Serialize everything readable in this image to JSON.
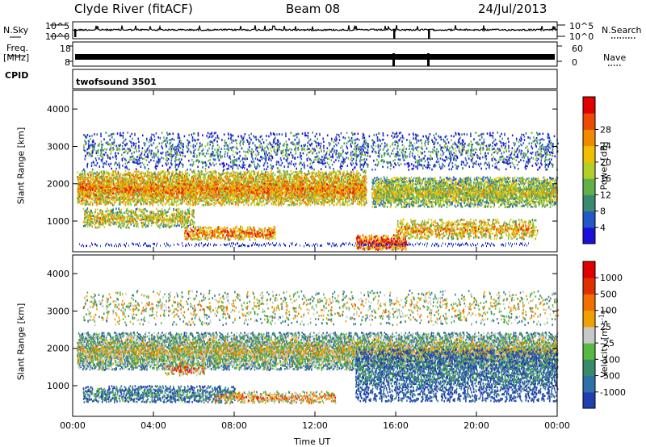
{
  "header": {
    "station": "Clyde River (fitACF)",
    "beam": "Beam 08",
    "date": "24/Jul/2013"
  },
  "strips": {
    "nsky_label": "N.Sky",
    "nsearch_label": "N.Search",
    "noise_top_tick": "10^5",
    "noise_bottom_tick": "10^0",
    "freq_label": "Freq.",
    "freq_unit": "[MHz]",
    "freq_ticks": [
      "18",
      "8"
    ],
    "nave_label": "Nave",
    "nave_ticks": [
      "60",
      "0"
    ],
    "cpid_label": "CPID",
    "cpid_value": "twofsound 3501"
  },
  "chart_data": [
    {
      "type": "heatmap",
      "panel": "power",
      "ylabel": "Slant Range [km]",
      "xlabel": "",
      "y_ticks": [
        "1000",
        "2000",
        "3000",
        "4000"
      ],
      "ylim": [
        180,
        4500
      ],
      "colorbar_label": "Power [dB]",
      "colorbar_ticks": [
        "4",
        "8",
        "12",
        "16",
        "20",
        "24",
        "28"
      ],
      "colorbar_colors": [
        "#1c10d8",
        "#2458c8",
        "#3a8a72",
        "#62b04a",
        "#b4d028",
        "#f0c000",
        "#f28a00",
        "#ec4a00",
        "#e00000"
      ],
      "scatter_bands": [
        {
          "t0": 0.2,
          "t1": 14.5,
          "r_center": 1900,
          "r_halfwidth": 450,
          "level": 0.72,
          "density": 0.9
        },
        {
          "t0": 14.8,
          "t1": 24.0,
          "r_center": 1800,
          "r_halfwidth": 400,
          "level": 0.55,
          "density": 0.85
        },
        {
          "t0": 0.5,
          "t1": 6.0,
          "r_center": 1100,
          "r_halfwidth": 250,
          "level": 0.6,
          "density": 0.6
        },
        {
          "t0": 5.5,
          "t1": 10.0,
          "r_center": 700,
          "r_halfwidth": 180,
          "level": 0.8,
          "density": 0.6
        },
        {
          "t0": 14.0,
          "t1": 16.5,
          "r_center": 450,
          "r_halfwidth": 200,
          "level": 0.92,
          "density": 0.8
        },
        {
          "t0": 16.0,
          "t1": 23.0,
          "r_center": 800,
          "r_halfwidth": 250,
          "level": 0.7,
          "density": 0.55
        },
        {
          "t0": 0.5,
          "t1": 24.0,
          "r_center": 2900,
          "r_halfwidth": 500,
          "level": 0.3,
          "density": 0.22
        }
      ]
    },
    {
      "type": "heatmap",
      "panel": "velocity",
      "ylabel": "Slant Range [km]",
      "xlabel": "Time UT",
      "x_ticks": [
        "00:00",
        "04:00",
        "08:00",
        "12:00",
        "16:00",
        "20:00",
        "00:00"
      ],
      "xlim": [
        0,
        24
      ],
      "y_ticks": [
        "1000",
        "2000",
        "3000",
        "4000"
      ],
      "ylim": [
        180,
        4500
      ],
      "colorbar_label": "Velocity [m s",
      "colorbar_unit_exp": "-1",
      "colorbar_unit_close": "]",
      "colorbar_ticks": [
        "1000",
        "500",
        "100",
        "25",
        "-25",
        "-100",
        "-500",
        "-1000"
      ],
      "colorbar_colors": [
        "#2040b0",
        "#3070a8",
        "#3a8a6a",
        "#58b840",
        "#c8c8c8",
        "#f0a000",
        "#f07000",
        "#e03000",
        "#e00000"
      ],
      "scatter_bands": [
        {
          "t0": 0.2,
          "t1": 24.0,
          "r_center": 1950,
          "r_halfwidth": 500,
          "level": 0.5,
          "density": 0.85
        },
        {
          "t0": 0.5,
          "t1": 8.0,
          "r_center": 800,
          "r_halfwidth": 220,
          "level": 0.3,
          "density": 0.6
        },
        {
          "t0": 4.5,
          "t1": 6.5,
          "r_center": 1450,
          "r_halfwidth": 150,
          "level": 0.75,
          "density": 0.5
        },
        {
          "t0": 7.0,
          "t1": 13.0,
          "r_center": 700,
          "r_halfwidth": 150,
          "level": 0.7,
          "density": 0.5
        },
        {
          "t0": 14.0,
          "t1": 24.0,
          "r_center": 1300,
          "r_halfwidth": 700,
          "level": 0.2,
          "density": 0.5
        },
        {
          "t0": 0.5,
          "t1": 24.0,
          "r_center": 3100,
          "r_halfwidth": 450,
          "level": 0.55,
          "density": 0.15
        }
      ]
    }
  ]
}
